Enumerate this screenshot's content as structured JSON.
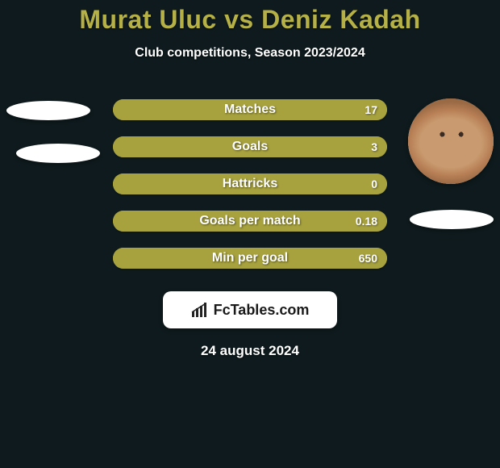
{
  "title": "Murat Uluc vs Deniz Kadah",
  "subtitle": "Club competitions, Season 2023/2024",
  "date": "24 august 2024",
  "colors": {
    "background": "#0e1a1d",
    "title": "#b6b146",
    "subtitle_text": "#ffffff",
    "bar_bg": "#a7a23e",
    "bar_label": "#ffffff",
    "bar_value": "#ffffff",
    "badge_bg": "#ffffff",
    "badge_text": "#1a1a1a",
    "date_text": "#ffffff"
  },
  "bars": [
    {
      "label": "Matches",
      "left": "",
      "right": "17",
      "left_pct": 0,
      "right_pct": 100
    },
    {
      "label": "Goals",
      "left": "",
      "right": "3",
      "left_pct": 0,
      "right_pct": 100
    },
    {
      "label": "Hattricks",
      "left": "",
      "right": "0",
      "left_pct": 0,
      "right_pct": 100
    },
    {
      "label": "Goals per match",
      "left": "",
      "right": "0.18",
      "left_pct": 0,
      "right_pct": 100
    },
    {
      "label": "Min per goal",
      "left": "",
      "right": "650",
      "left_pct": 0,
      "right_pct": 100
    }
  ],
  "badge": {
    "text": "FcTables.com"
  },
  "avatars": {
    "left_is_photo": false,
    "right_is_photo": true
  }
}
